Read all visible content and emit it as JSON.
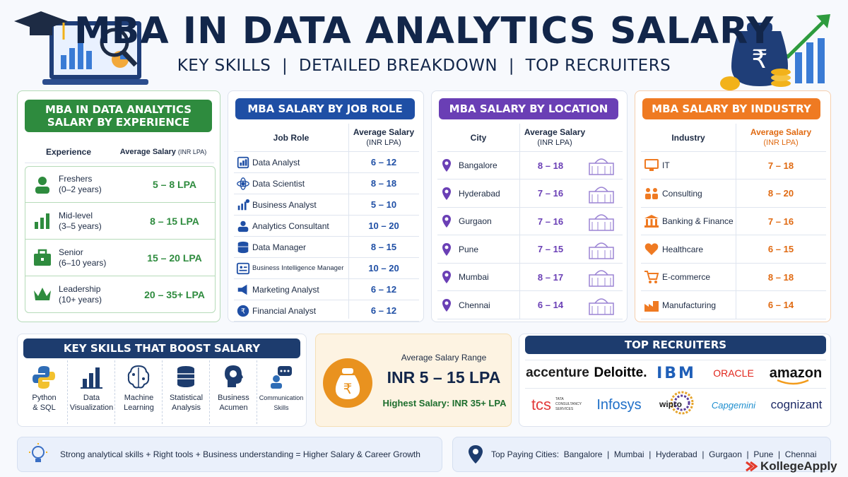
{
  "header": {
    "title": "MBA IN DATA ANALYTICS SALARY",
    "subtitle": "KEY SKILLS  |  DETAILED BREAKDOWN  |  TOP RECRUITERS"
  },
  "experience": {
    "title": "MBA IN DATA ANALYTICS SALARY BY EXPERIENCE",
    "col1": "Experience",
    "col2": "Average Salary",
    "col2_unit": "(INR LPA)",
    "color": "#2e8b3e",
    "rows": [
      {
        "label": "Freshers",
        "sub": "(0–2 years)",
        "value": "5 – 8 LPA",
        "icon": "person-icon"
      },
      {
        "label": "Mid-level",
        "sub": "(3–5 years)",
        "value": "8 – 15 LPA",
        "icon": "bar-chart-icon"
      },
      {
        "label": "Senior",
        "sub": "(6–10 years)",
        "value": "15 – 20 LPA",
        "icon": "briefcase-icon"
      },
      {
        "label": "Leadership",
        "sub": "(10+ years)",
        "value": "20 – 35+ LPA",
        "icon": "crown-icon"
      }
    ]
  },
  "jobrole": {
    "title": "MBA SALARY BY JOB ROLE",
    "col1": "Job Role",
    "col2": "Average Salary",
    "col2b": "(INR LPA)",
    "color": "#1f4fa5",
    "rows": [
      {
        "role": "Data Analyst",
        "value": "6 – 12"
      },
      {
        "role": "Data Scientist",
        "value": "8 – 18"
      },
      {
        "role": "Business Analyst",
        "value": "5 – 10"
      },
      {
        "role": "Analytics Consultant",
        "value": "10 – 20"
      },
      {
        "role": "Data Manager",
        "value": "8 – 15"
      },
      {
        "role": "Business Intelligence Manager",
        "value": "10 – 20"
      },
      {
        "role": "Marketing Analyst",
        "value": "6 – 12"
      },
      {
        "role": "Financial Analyst",
        "value": "6 – 12"
      }
    ]
  },
  "location": {
    "title": "MBA SALARY BY LOCATION",
    "col1": "City",
    "col2": "Average Salary",
    "col2b": "(INR LPA)",
    "color": "#6a3fb5",
    "rows": [
      {
        "city": "Bangalore",
        "value": "8 – 18"
      },
      {
        "city": "Hyderabad",
        "value": "7 – 16"
      },
      {
        "city": "Gurgaon",
        "value": "7 – 16"
      },
      {
        "city": "Pune",
        "value": "7 – 15"
      },
      {
        "city": "Mumbai",
        "value": "8 – 17"
      },
      {
        "city": "Chennai",
        "value": "6 – 14"
      }
    ]
  },
  "industry": {
    "title": "MBA SALARY BY INDUSTRY",
    "col1": "Industry",
    "col2": "Average Salary",
    "col2b": "(INR LPA)",
    "color": "#ef7a22",
    "rows": [
      {
        "name": "IT",
        "value": "7 – 18"
      },
      {
        "name": "Consulting",
        "value": "8 – 20"
      },
      {
        "name": "Banking & Finance",
        "value": "7 – 16"
      },
      {
        "name": "Healthcare",
        "value": "6 – 15"
      },
      {
        "name": "E-commerce",
        "value": "8 – 18"
      },
      {
        "name": "Manufacturing",
        "value": "6 – 14"
      }
    ]
  },
  "skills": {
    "title": "KEY SKILLS THAT BOOST SALARY",
    "items": [
      {
        "l1": "Python",
        "l2": "& SQL"
      },
      {
        "l1": "Data",
        "l2": "Visualization"
      },
      {
        "l1": "Machine",
        "l2": "Learning"
      },
      {
        "l1": "Statistical",
        "l2": "Analysis"
      },
      {
        "l1": "Business",
        "l2": "Acumen"
      },
      {
        "l1": "Communication",
        "l2": "Skills"
      }
    ]
  },
  "range": {
    "label": "Average Salary Range",
    "value": "INR 5 – 15 LPA",
    "highest": "Highest Salary: INR 35+ LPA"
  },
  "recruiters": {
    "title": "TOP RECRUITERS",
    "logos": [
      "accenture",
      "Deloitte.",
      "IBM",
      "ORACLE",
      "amazon",
      "tcs",
      "TATA CONSULTANCY SERVICES",
      "Infosys",
      "wipro",
      "Capgemini",
      "cognizant"
    ]
  },
  "footer": {
    "left": "Strong analytical skills + Right tools + Business understanding = Higher Salary & Career Growth",
    "right": "Top Paying Cities:  Bangalore  |  Mumbai  |  Hyderabad  |  Gurgaon  |  Pune  |  Chennai",
    "brand": "KollegeApply"
  }
}
